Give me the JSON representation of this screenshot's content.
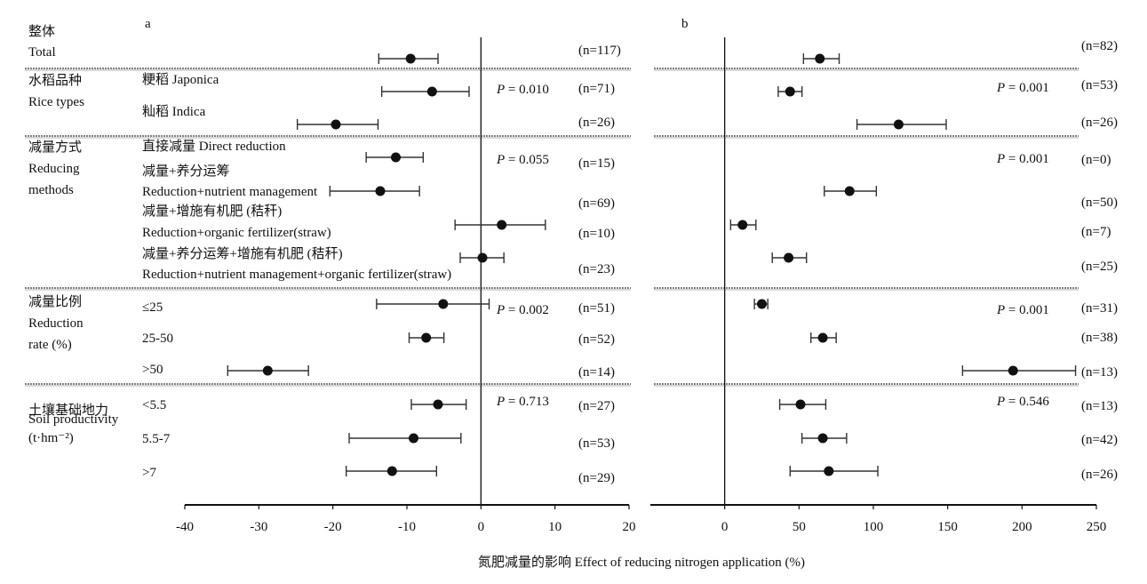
{
  "chart_data": {
    "type": "forest",
    "xlabel": "氮肥减量的影响 Effect of reducing nitrogen application (%)",
    "categories": [
      {
        "line1": "整体",
        "line2": "Total",
        "line3": ""
      },
      {
        "line1": "水稻品种",
        "line2": "Rice types",
        "line3": ""
      },
      {
        "line1": "减量方式",
        "line2": "Reducing",
        "line3": "methods"
      },
      {
        "line1": "减量比例",
        "line2": "Reduction",
        "line3": "rate (%)"
      },
      {
        "line1": "土壤基础地力",
        "line2": "Soil productivity",
        "line3": "(t·hm⁻²)"
      }
    ],
    "subgroups": [
      {
        "label1": "",
        "label2": "",
        "group": 0
      },
      {
        "label1": "粳稻 Japonica",
        "label2": "",
        "group": 1
      },
      {
        "label1": "籼稻 Indica",
        "label2": "",
        "group": 1
      },
      {
        "label1": "直接减量 Direct reduction",
        "label2": "",
        "group": 2
      },
      {
        "label1": "减量+养分运筹",
        "label2": "Reduction+nutrient management",
        "group": 2
      },
      {
        "label1": "减量+增施有机肥 (秸秆)",
        "label2": "Reduction+organic fertilizer(straw)",
        "group": 2
      },
      {
        "label1": "减量+养分运筹+增施有机肥 (秸秆)",
        "label2": "Reduction+nutrient management+organic fertilizer(straw)",
        "group": 2
      },
      {
        "label1": "≤25",
        "label2": "",
        "group": 3
      },
      {
        "label1": "25-50",
        "label2": "",
        "group": 3
      },
      {
        "label1": ">50",
        "label2": "",
        "group": 3
      },
      {
        "label1": "<5.5",
        "label2": "",
        "group": 4
      },
      {
        "label1": "5.5-7",
        "label2": "",
        "group": 4
      },
      {
        "label1": ">7",
        "label2": "",
        "group": 4
      }
    ],
    "panels": [
      {
        "label": "a",
        "xlim": [
          -40,
          20
        ],
        "xticks": [
          -40,
          -30,
          -20,
          -10,
          0,
          10,
          20
        ],
        "p_values": [
          "0.010",
          "0.055",
          "0.002",
          "0.713"
        ],
        "p_prefix": "P",
        "series": [
          {
            "mean": -9.5,
            "lo": -13.8,
            "hi": -5.8,
            "n": "(n=117)"
          },
          {
            "mean": -6.6,
            "lo": -13.4,
            "hi": -1.6,
            "n": "(n=71)"
          },
          {
            "mean": -19.6,
            "lo": -24.8,
            "hi": -13.9,
            "n": "(n=26)"
          },
          {
            "mean": -11.5,
            "lo": -15.5,
            "hi": -7.8,
            "n": "(n=15)"
          },
          {
            "mean": -13.6,
            "lo": -20.4,
            "hi": -8.3,
            "n": "(n=69)"
          },
          {
            "mean": 2.8,
            "lo": -3.5,
            "hi": 8.7,
            "n": "(n=10)"
          },
          {
            "mean": 0.2,
            "lo": -2.8,
            "hi": 3.1,
            "n": "(n=23)"
          },
          {
            "mean": -5.1,
            "lo": -14.1,
            "hi": 1.1,
            "n": "(n=51)"
          },
          {
            "mean": -7.4,
            "lo": -9.7,
            "hi": -5.0,
            "n": "(n=52)"
          },
          {
            "mean": -28.8,
            "lo": -34.2,
            "hi": -23.3,
            "n": "(n=14)"
          },
          {
            "mean": -5.8,
            "lo": -9.4,
            "hi": -2.0,
            "n": "(n=27)"
          },
          {
            "mean": -9.1,
            "lo": -17.8,
            "hi": -2.7,
            "n": "(n=53)"
          },
          {
            "mean": -12.0,
            "lo": -18.2,
            "hi": -6.0,
            "n": "(n=29)"
          }
        ]
      },
      {
        "label": "b",
        "xlim": [
          -50,
          250
        ],
        "xticks": [
          0,
          50,
          100,
          150,
          200,
          250
        ],
        "p_values": [
          "0.001",
          "0.001",
          "0.001",
          "0.546"
        ],
        "p_prefix": "P",
        "series": [
          {
            "mean": 64,
            "lo": 53,
            "hi": 77,
            "n": "(n=82)"
          },
          {
            "mean": 44,
            "lo": 36,
            "hi": 52,
            "n": "(n=53)"
          },
          {
            "mean": 117,
            "lo": 89,
            "hi": 149,
            "n": "(n=26)"
          },
          {
            "mean": null,
            "lo": null,
            "hi": null,
            "n": "(n=0)"
          },
          {
            "mean": 84,
            "lo": 67,
            "hi": 102,
            "n": "(n=50)"
          },
          {
            "mean": 12,
            "lo": 4,
            "hi": 21,
            "n": "(n=7)"
          },
          {
            "mean": 43,
            "lo": 32,
            "hi": 55,
            "n": "(n=25)"
          },
          {
            "mean": 25,
            "lo": 20,
            "hi": 29,
            "n": "(n=31)"
          },
          {
            "mean": 66,
            "lo": 58,
            "hi": 75,
            "n": "(n=38)"
          },
          {
            "mean": 194,
            "lo": 160,
            "hi": 236,
            "n": "(n=13)"
          },
          {
            "mean": 51,
            "lo": 37,
            "hi": 68,
            "n": "(n=13)"
          },
          {
            "mean": 66,
            "lo": 52,
            "hi": 82,
            "n": "(n=42)"
          },
          {
            "mean": 70,
            "lo": 44,
            "hi": 103,
            "n": "(n=26)"
          }
        ]
      }
    ]
  }
}
